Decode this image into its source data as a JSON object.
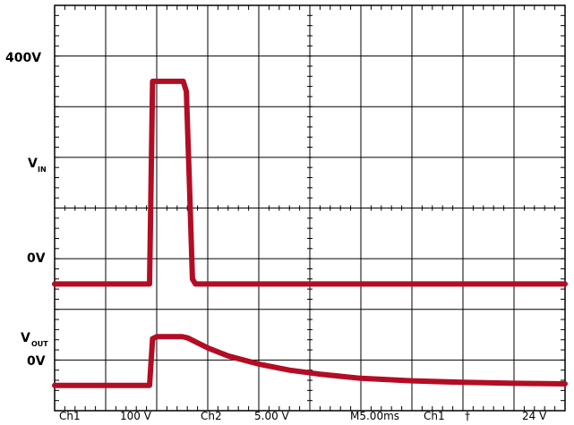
{
  "chart_data": {
    "type": "line",
    "xlabel": "",
    "ylabel": "",
    "grid": true,
    "divisions": {
      "x": 10,
      "y": 8
    },
    "x_unit_per_div_ms": 5,
    "x_range_ms": [
      0,
      50
    ],
    "y_labels": {
      "vin_400": "400V",
      "vin": "V",
      "vin_sub": "IN",
      "vin_zero": "0V",
      "vout": "V",
      "vout_sub": "OUT",
      "vout_zero": "0V"
    },
    "series": [
      {
        "key": "vin",
        "scale_v_per_div": 100,
        "offset_div": 2.5,
        "x_ms": [
          0,
          9.3,
          9.6,
          12.6,
          12.9,
          13.2,
          13.5,
          13.8,
          50
        ],
        "y_v": [
          0,
          0,
          400,
          400,
          380,
          200,
          10,
          0,
          0
        ]
      },
      {
        "key": "vout",
        "scale_v_per_div": 5,
        "offset_div": 0.5,
        "x_ms": [
          0,
          9.3,
          9.6,
          10.0,
          12.5,
          13.0,
          15,
          17,
          20,
          23,
          26,
          30,
          35,
          40,
          45,
          50
        ],
        "y_v": [
          0,
          0,
          4.6,
          4.8,
          4.8,
          4.7,
          3.7,
          2.9,
          2.1,
          1.5,
          1.1,
          0.7,
          0.45,
          0.3,
          0.2,
          0.15
        ]
      }
    ],
    "trace_color": "#b20d24"
  },
  "status_bar": {
    "ch1": "Ch1",
    "ch1_scale": "100 V",
    "ch2": "Ch2",
    "ch2_scale": "5.00 V",
    "timebase": "M5.00ms",
    "trigger_source": "Ch1",
    "trigger_slope": "†",
    "trigger_level": "24 V"
  }
}
